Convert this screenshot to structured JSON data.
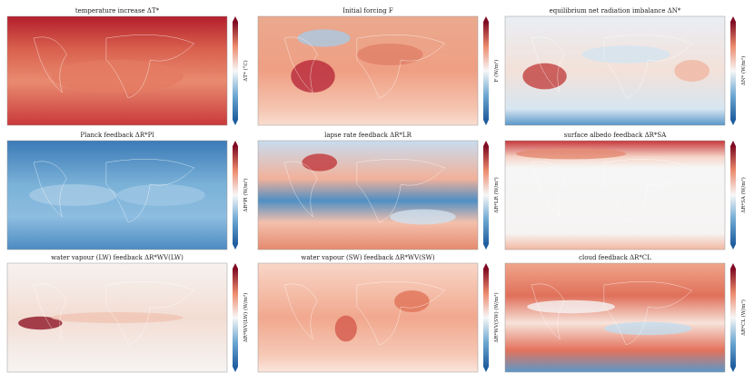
{
  "panels": [
    {
      "title": "temperature increase ΔT*",
      "colorbar_label": "ΔT* (°C)"
    },
    {
      "title": "Initial forcing F",
      "colorbar_label": "F (W/m²)"
    },
    {
      "title": "equilibrium net radiation imbalance ΔN*",
      "colorbar_label": "ΔN* (W/m²)"
    },
    {
      "title": "Planck feedback ΔR*Pl",
      "colorbar_label": "ΔR*Pl (W/m²)"
    },
    {
      "title": "lapse rate feedback ΔR*LR",
      "colorbar_label": "ΔR*LR (W/m²)"
    },
    {
      "title": "surface albedo feedback ΔR*SA",
      "colorbar_label": "ΔR*SA (W/m²)"
    },
    {
      "title": "water vapour (LW) feedback ΔR*WV(LW)",
      "colorbar_label": "ΔR*WV(LW) (W/m²)"
    },
    {
      "title": "water vapour (SW) feedback ΔR*WV(SW)",
      "colorbar_label": "ΔR*WV(SW) (W/m²)"
    },
    {
      "title": "cloud feedback ΔR*CL",
      "colorbar_label": "ΔR*CL (W/m²)"
    }
  ]
}
